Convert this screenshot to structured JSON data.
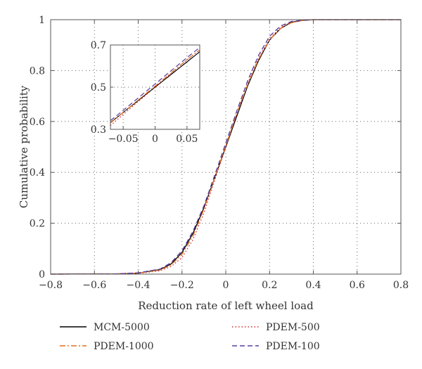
{
  "chart_data": {
    "type": "line",
    "xlabel": "Reduction rate of left wheel load",
    "ylabel": "Cumulative probability",
    "xlim": [
      -0.8,
      0.8
    ],
    "ylim": [
      0,
      1
    ],
    "xticks": [
      "−0.8",
      "−0.6",
      "−0.4",
      "−0.2",
      "0",
      "0.2",
      "0.4",
      "0.6",
      "0.8"
    ],
    "yticks": [
      "0",
      "0.2",
      "0.4",
      "0.6",
      "0.8",
      "1"
    ],
    "grid": true,
    "legend_position": "bottom",
    "series": [
      {
        "name": "MCM-5000",
        "color": "#000000",
        "dash": "solid",
        "x": [
          -0.8,
          -0.5,
          -0.4,
          -0.3,
          -0.25,
          -0.2,
          -0.15,
          -0.1,
          -0.05,
          0,
          0.05,
          0.1,
          0.15,
          0.2,
          0.25,
          0.3,
          0.35,
          0.4,
          0.6,
          0.8
        ],
        "y": [
          0,
          0.001,
          0.004,
          0.018,
          0.04,
          0.085,
          0.16,
          0.26,
          0.38,
          0.5,
          0.62,
          0.74,
          0.84,
          0.92,
          0.965,
          0.99,
          0.997,
          1.0,
          1.0,
          1.0
        ]
      },
      {
        "name": "PDEM-500",
        "color": "#d62728",
        "dash": "dotted",
        "x": [
          -0.8,
          -0.5,
          -0.4,
          -0.3,
          -0.25,
          -0.2,
          -0.15,
          -0.1,
          -0.05,
          0,
          0.05,
          0.1,
          0.15,
          0.2,
          0.25,
          0.3,
          0.35,
          0.4,
          0.6,
          0.8
        ],
        "y": [
          0,
          0.001,
          0.003,
          0.013,
          0.03,
          0.065,
          0.135,
          0.24,
          0.37,
          0.5,
          0.63,
          0.75,
          0.85,
          0.925,
          0.97,
          0.99,
          0.997,
          1.0,
          1.0,
          1.0
        ]
      },
      {
        "name": "PDEM-1000",
        "color": "#e07020",
        "dash": "dashdot",
        "x": [
          -0.8,
          -0.5,
          -0.4,
          -0.3,
          -0.25,
          -0.2,
          -0.15,
          -0.1,
          -0.05,
          0,
          0.05,
          0.1,
          0.15,
          0.2,
          0.25,
          0.3,
          0.35,
          0.4,
          0.6,
          0.8
        ],
        "y": [
          0,
          0.001,
          0.004,
          0.016,
          0.036,
          0.078,
          0.15,
          0.255,
          0.38,
          0.505,
          0.63,
          0.745,
          0.845,
          0.92,
          0.965,
          0.988,
          0.997,
          1.0,
          1.0,
          1.0
        ]
      },
      {
        "name": "PDEM-100",
        "color": "#5a3fa0",
        "dash": "dashed",
        "x": [
          -0.8,
          -0.5,
          -0.4,
          -0.3,
          -0.25,
          -0.2,
          -0.15,
          -0.1,
          -0.05,
          0,
          0.05,
          0.1,
          0.15,
          0.2,
          0.25,
          0.3,
          0.35,
          0.4,
          0.6,
          0.8
        ],
        "y": [
          0,
          0.001,
          0.005,
          0.02,
          0.045,
          0.092,
          0.168,
          0.268,
          0.39,
          0.515,
          0.64,
          0.76,
          0.86,
          0.935,
          0.975,
          0.993,
          0.998,
          1.0,
          1.0,
          1.0
        ]
      }
    ],
    "inset": {
      "xlim": [
        -0.07,
        0.07
      ],
      "ylim": [
        0.3,
        0.7
      ],
      "xticks": [
        "−0.05",
        "0",
        "0.05"
      ],
      "yticks": [
        "0.3",
        "0.5",
        "0.7"
      ],
      "grid": true
    }
  }
}
